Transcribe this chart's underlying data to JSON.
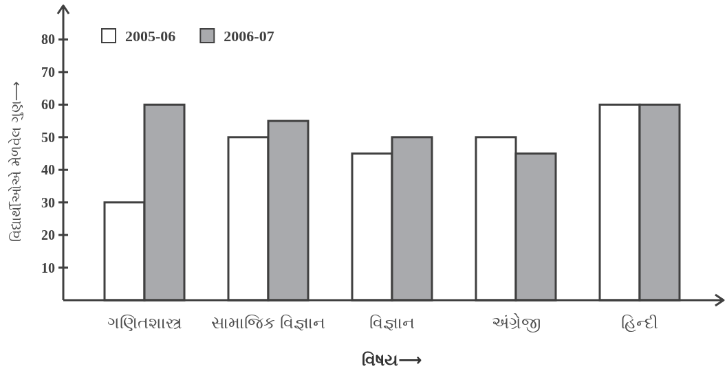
{
  "chart_data": {
    "type": "bar",
    "categories": [
      "ગણિતશાસ્ત્ર",
      "સામાજિક વિજ્ઞાન",
      "વિજ્ઞાન",
      "અંગ્રેજી",
      "હિન્દી"
    ],
    "series": [
      {
        "name": "2005-06",
        "color": "#ffffff",
        "values": [
          30,
          50,
          45,
          50,
          60
        ]
      },
      {
        "name": "2006-07",
        "color": "#a9aaad",
        "values": [
          60,
          55,
          50,
          45,
          60
        ]
      }
    ],
    "ylim": [
      0,
      90
    ],
    "yticks": [
      10,
      20,
      30,
      40,
      50,
      60,
      70,
      80
    ],
    "xlabel": "વિષય⟶",
    "ylabel": "વિદ્યાર્થીઓએ મેળવેલ ગુણ⟶",
    "legend": "top left"
  }
}
